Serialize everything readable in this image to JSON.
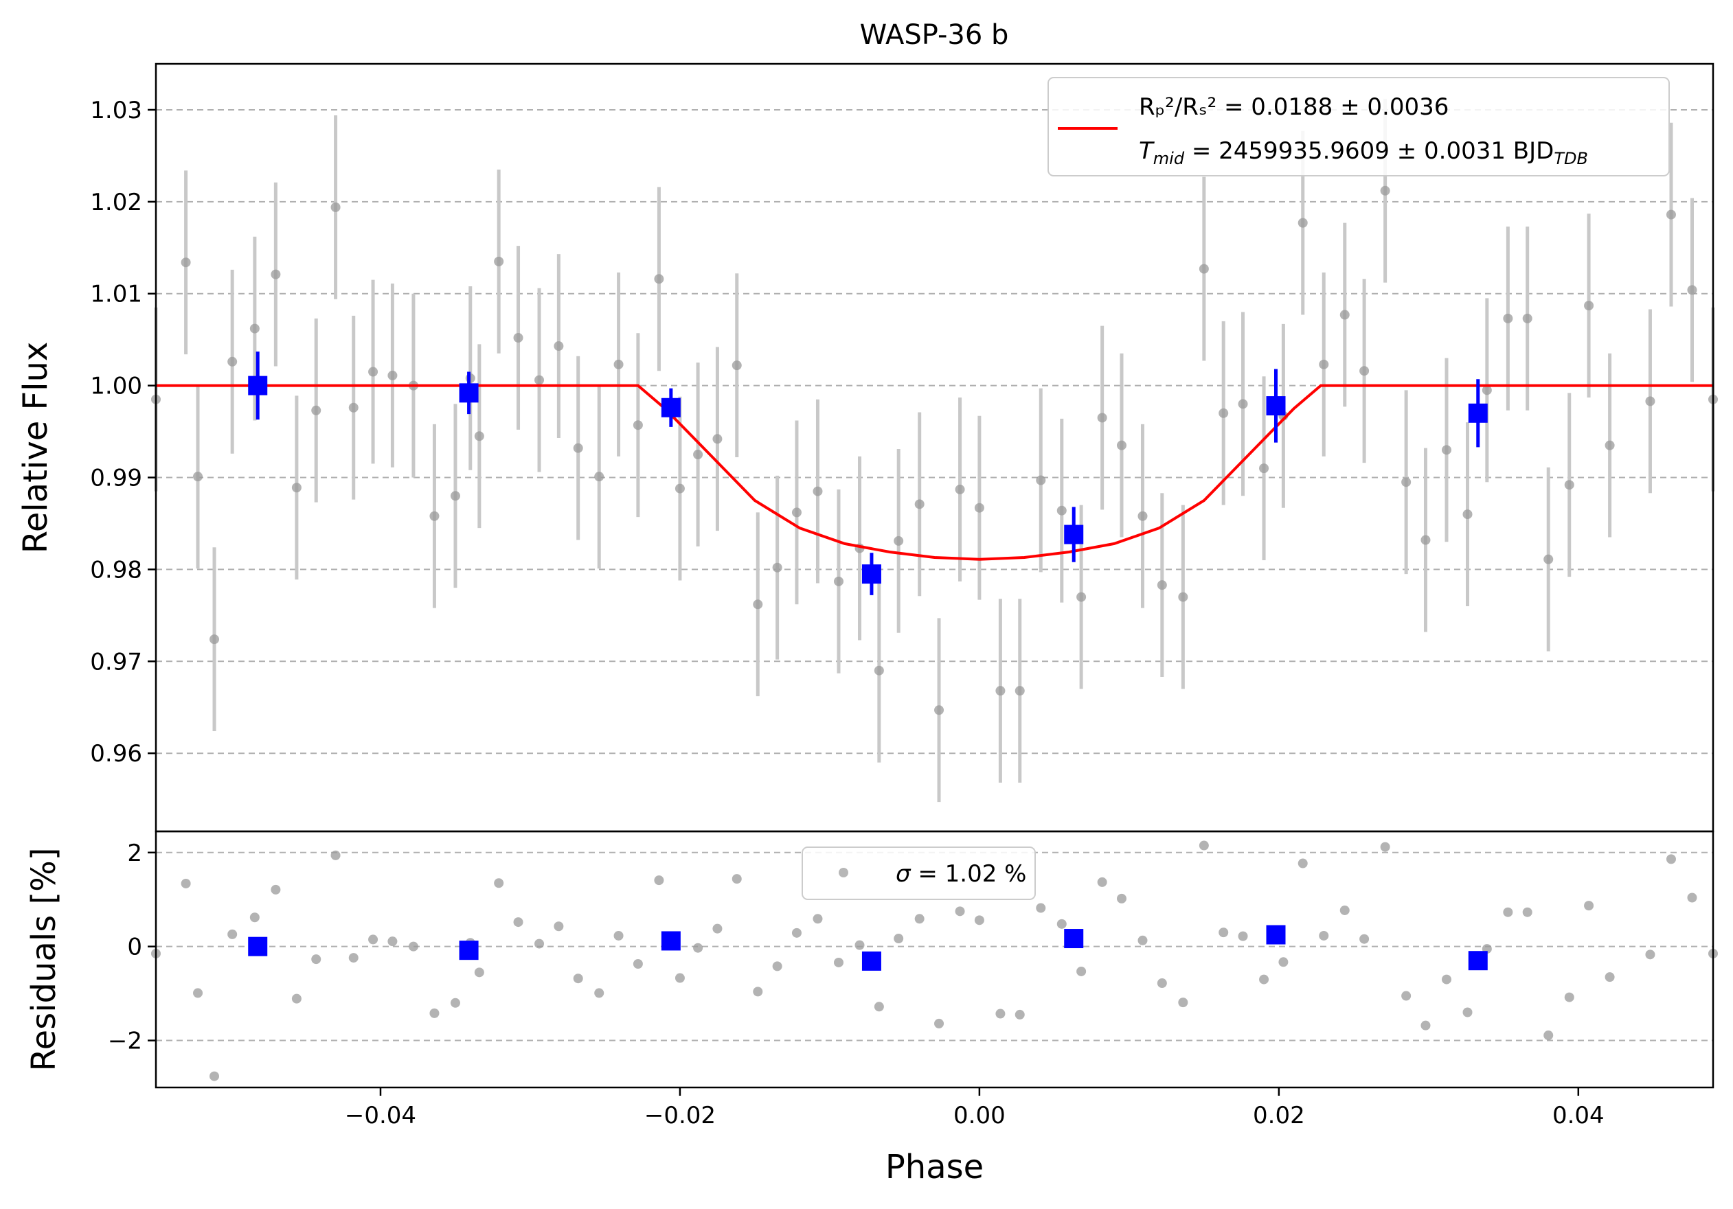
{
  "chart_data": [
    {
      "type": "scatter",
      "panel": "transit",
      "title": "WASP-36 b",
      "xlabel": "",
      "ylabel": "Relative Flux",
      "xlim": [
        -0.055,
        0.049
      ],
      "ylim": [
        0.9515,
        1.035
      ],
      "x_ticks": [
        -0.04,
        -0.02,
        0.0,
        0.02,
        0.04
      ],
      "y_ticks": [
        0.96,
        0.97,
        0.98,
        0.99,
        1.0,
        1.01,
        1.02,
        1.03
      ],
      "y_tick_labels": [
        "0.96",
        "0.97",
        "0.98",
        "0.99",
        "1.00",
        "1.01",
        "1.02",
        "1.03"
      ],
      "grid": "y-dashed",
      "legend_placement": "top-right",
      "legend": {
        "line1": "Rₚ²/Rₛ² = 0.0188 ± 0.0036",
        "line2_prefix": "T",
        "line2_sub": "mid",
        "line2_value": " = 2459935.9609 ± 0.0031 BJD",
        "line2_unit_sub": "TDB"
      },
      "model": {
        "name": "transit model",
        "color": "#ff0000",
        "x": [
          -0.055,
          -0.0228,
          -0.021,
          -0.018,
          -0.015,
          -0.012,
          -0.009,
          -0.006,
          -0.003,
          0.0,
          0.003,
          0.006,
          0.009,
          0.012,
          0.015,
          0.018,
          0.021,
          0.0228,
          0.049
        ],
        "y": [
          1.0,
          1.0,
          0.9975,
          0.9925,
          0.9875,
          0.9845,
          0.9828,
          0.9819,
          0.9813,
          0.9811,
          0.9813,
          0.9819,
          0.9828,
          0.9845,
          0.9875,
          0.9925,
          0.9975,
          1.0,
          1.0
        ]
      },
      "raw_points": {
        "color": "#999999",
        "errorbar_color": "#c8c8c8",
        "x": [
          -0.055,
          -0.053,
          -0.0522,
          -0.0511,
          -0.0499,
          -0.0484,
          -0.047,
          -0.0456,
          -0.0443,
          -0.043,
          -0.0418,
          -0.0405,
          -0.0392,
          -0.0378,
          -0.0364,
          -0.035,
          -0.034,
          -0.0334,
          -0.0321,
          -0.0308,
          -0.0294,
          -0.0281,
          -0.0268,
          -0.0254,
          -0.0241,
          -0.0228,
          -0.0214,
          -0.02,
          -0.0188,
          -0.0175,
          -0.0162,
          -0.0148,
          -0.0135,
          -0.0122,
          -0.0108,
          -0.0094,
          -0.008,
          -0.0067,
          -0.0054,
          -0.004,
          -0.0027,
          -0.0013,
          0.0,
          0.0014,
          0.0027,
          0.0041,
          0.0055,
          0.0068,
          0.0082,
          0.0095,
          0.0109,
          0.0122,
          0.0136,
          0.015,
          0.0163,
          0.0176,
          0.019,
          0.0203,
          0.0216,
          0.023,
          0.0244,
          0.0257,
          0.0271,
          0.0285,
          0.0298,
          0.0312,
          0.0326,
          0.0339,
          0.0353,
          0.0366,
          0.038,
          0.0394,
          0.0407,
          0.0421,
          0.0448,
          0.0462,
          0.0476,
          0.049
        ],
        "y": [
          0.9985,
          1.0134,
          0.9901,
          0.9724,
          1.0026,
          1.0062,
          1.0121,
          0.9889,
          0.9973,
          1.0194,
          0.9976,
          1.0015,
          1.0011,
          1.0,
          0.9858,
          0.988,
          1.0008,
          0.9945,
          1.0135,
          1.0052,
          1.0006,
          1.0043,
          0.9932,
          0.9901,
          1.0023,
          0.9957,
          1.0116,
          0.9888,
          0.9925,
          0.9942,
          1.0022,
          0.9762,
          0.9802,
          0.9862,
          0.9885,
          0.9787,
          0.9823,
          0.969,
          0.9831,
          0.9871,
          0.9647,
          0.9887,
          0.9867,
          0.9668,
          0.9668,
          0.9897,
          0.9864,
          0.977,
          0.9965,
          0.9935,
          0.9858,
          0.9783,
          0.977,
          1.0127,
          0.997,
          0.998,
          0.991,
          0.9967,
          1.0177,
          1.0023,
          1.0077,
          1.0016,
          1.0212,
          0.9895,
          0.9832,
          0.993,
          0.986,
          0.9995,
          1.0073,
          1.0073,
          0.9811,
          0.9892,
          1.0087,
          0.9935,
          0.9983,
          1.0186,
          1.0104,
          0.9985
        ],
        "yerr": 0.01
      },
      "binned_points": {
        "color": "#0000ff",
        "x": [
          -0.0482,
          -0.0341,
          -0.0206,
          -0.0072,
          0.0063,
          0.0198,
          0.0333
        ],
        "y": [
          1.0,
          0.9992,
          0.9976,
          0.9795,
          0.9838,
          0.9978,
          0.997
        ],
        "yerr": [
          0.0037,
          0.0023,
          0.0021,
          0.0023,
          0.003,
          0.004,
          0.0037
        ]
      }
    },
    {
      "type": "scatter",
      "panel": "residuals",
      "xlabel": "Phase",
      "ylabel": "Residuals [%]",
      "xlim": [
        -0.055,
        0.049
      ],
      "ylim": [
        -3.0,
        2.45
      ],
      "x_ticks": [
        -0.04,
        -0.02,
        0.0,
        0.02,
        0.04
      ],
      "x_tick_labels": [
        "−0.04",
        "−0.02",
        "0.00",
        "0.02",
        "0.04"
      ],
      "y_ticks": [
        -2,
        0,
        2
      ],
      "y_tick_labels": [
        "−2",
        "0",
        "2"
      ],
      "grid": "y-dashed",
      "legend_placement": "top-center",
      "legend": {
        "sigma_symbol": "σ",
        "sigma_text": " = 1.02 %"
      },
      "raw_residuals": {
        "color": "#999999",
        "x": [
          -0.055,
          -0.053,
          -0.0522,
          -0.0511,
          -0.0499,
          -0.0484,
          -0.047,
          -0.0456,
          -0.0443,
          -0.043,
          -0.0418,
          -0.0405,
          -0.0392,
          -0.0378,
          -0.0364,
          -0.035,
          -0.034,
          -0.0334,
          -0.0321,
          -0.0308,
          -0.0294,
          -0.0281,
          -0.0268,
          -0.0254,
          -0.0241,
          -0.0228,
          -0.0214,
          -0.02,
          -0.0188,
          -0.0175,
          -0.0162,
          -0.0148,
          -0.0135,
          -0.0122,
          -0.0108,
          -0.0094,
          -0.008,
          -0.0067,
          -0.0054,
          -0.004,
          -0.0027,
          -0.0013,
          0.0,
          0.0014,
          0.0027,
          0.0041,
          0.0055,
          0.0068,
          0.0082,
          0.0095,
          0.0109,
          0.0122,
          0.0136,
          0.015,
          0.0163,
          0.0176,
          0.019,
          0.0203,
          0.0216,
          0.023,
          0.0244,
          0.0257,
          0.0271,
          0.0285,
          0.0298,
          0.0312,
          0.0326,
          0.0339,
          0.0353,
          0.0366,
          0.038,
          0.0394,
          0.0407,
          0.0421,
          0.0448,
          0.0462,
          0.0476,
          0.049
        ],
        "y": [
          -0.15,
          1.34,
          -0.99,
          -2.76,
          0.26,
          0.62,
          1.21,
          -1.11,
          -0.27,
          1.94,
          -0.24,
          0.15,
          0.11,
          0.0,
          -1.42,
          -1.2,
          0.08,
          -0.55,
          1.35,
          0.52,
          0.06,
          0.43,
          -0.68,
          -0.99,
          0.23,
          -0.37,
          1.41,
          -0.67,
          -0.03,
          0.38,
          1.44,
          -0.96,
          -0.42,
          0.29,
          0.59,
          -0.34,
          0.03,
          -1.28,
          0.17,
          0.59,
          -1.64,
          0.75,
          0.56,
          -1.43,
          -1.45,
          0.82,
          0.48,
          -0.53,
          1.37,
          1.02,
          0.13,
          -0.78,
          -1.19,
          2.15,
          0.3,
          0.22,
          -0.7,
          -0.33,
          1.77,
          0.23,
          0.77,
          0.16,
          2.12,
          -1.05,
          -1.68,
          -0.7,
          -1.4,
          -0.05,
          0.73,
          0.73,
          -1.89,
          -1.08,
          0.87,
          -0.65,
          -0.17,
          1.86,
          1.04,
          -0.15
        ]
      },
      "binned_residuals": {
        "color": "#0000ff",
        "x": [
          -0.0482,
          -0.0341,
          -0.0206,
          -0.0072,
          0.0063,
          0.0198,
          0.0333
        ],
        "y": [
          0.0,
          -0.08,
          0.12,
          -0.31,
          0.17,
          0.25,
          -0.3
        ]
      }
    }
  ]
}
